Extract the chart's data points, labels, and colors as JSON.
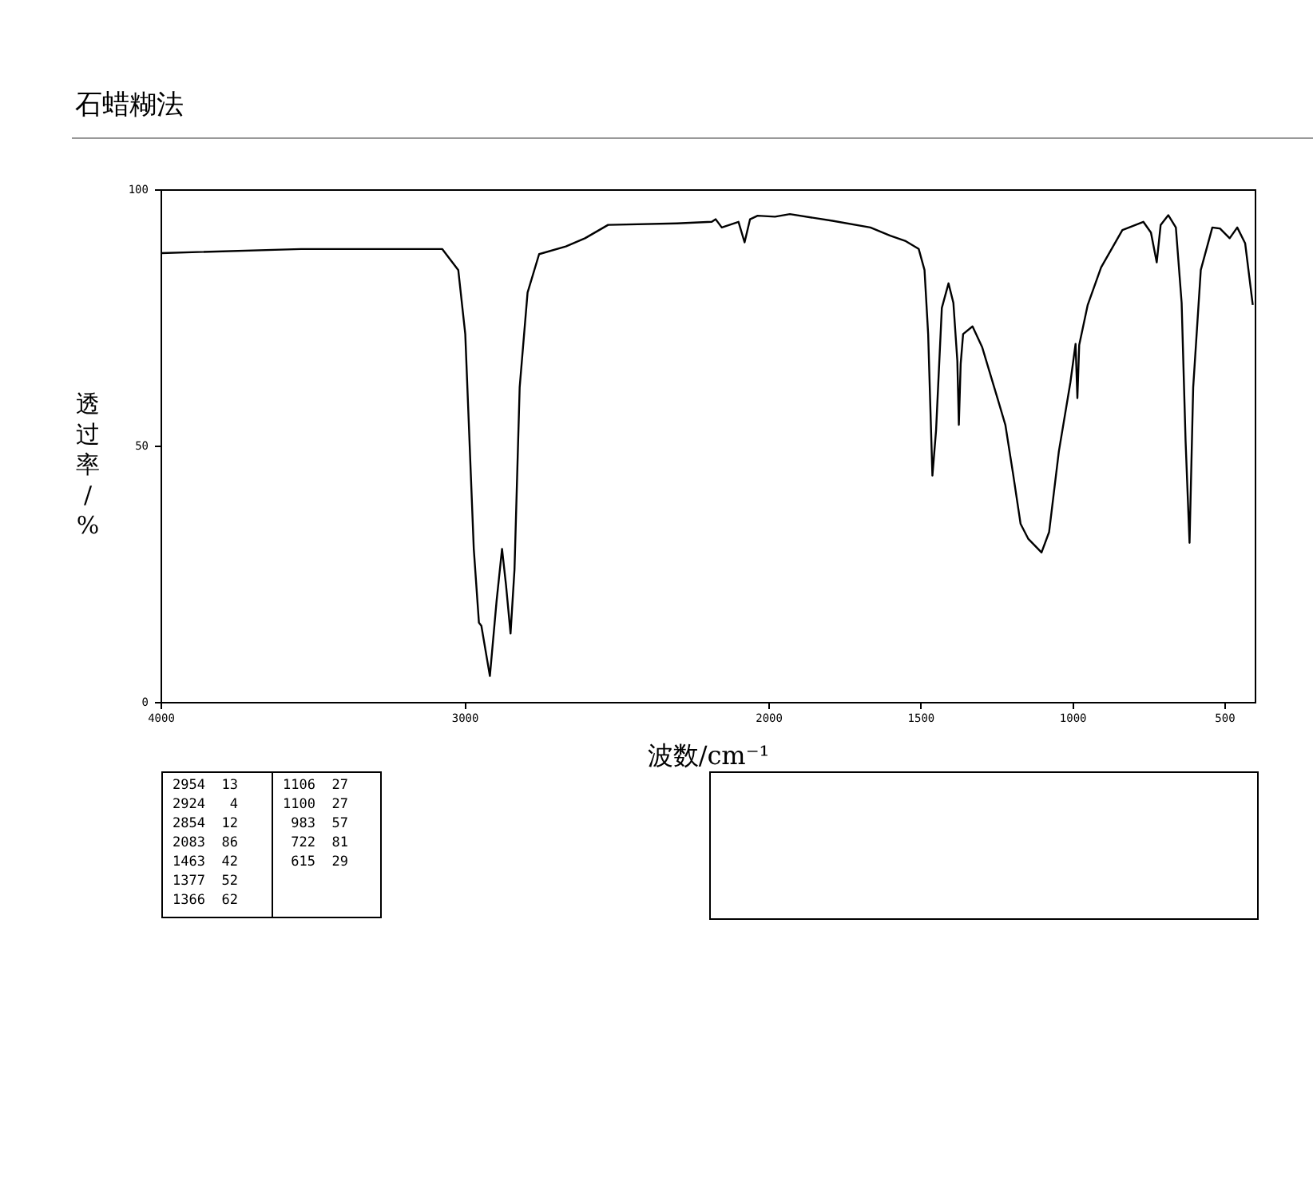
{
  "chart_data": {
    "type": "line",
    "title": "石蜡糊法",
    "xlabel": "波数/cm⁻¹",
    "ylabel": "透过率/%",
    "xlim": [
      4000,
      400
    ],
    "xticks": [
      4000,
      3000,
      2000,
      1500,
      1000,
      500
    ],
    "ylim": [
      0,
      100
    ],
    "yticks": [
      0,
      50,
      100
    ],
    "grid": false,
    "legend": false,
    "marker": "none",
    "line_style": "solid",
    "series": [
      {
        "color": "#000000",
        "x": [
          4000,
          3540,
          3076,
          3023,
          3000,
          2972,
          2955,
          2947,
          2919,
          2897,
          2879,
          2866,
          2851,
          2838,
          2821,
          2795,
          2757,
          2669,
          2606,
          2530,
          2303,
          2189,
          2176,
          2156,
          2101,
          2081,
          2063,
          2038,
          1981,
          1932,
          1792,
          1667,
          1602,
          1553,
          1508,
          1489,
          1477,
          1463,
          1451,
          1432,
          1410,
          1394,
          1381,
          1376,
          1370,
          1362,
          1331,
          1299,
          1249,
          1223,
          1198,
          1173,
          1148,
          1104,
          1079,
          1047,
          1009,
          992,
          986,
          980,
          952,
          908,
          838,
          769,
          744,
          725,
          712,
          687,
          662,
          643,
          630,
          617,
          605,
          580,
          542,
          517,
          485,
          460,
          434,
          409
        ],
        "values": [
          87.7,
          88.5,
          88.5,
          84.4,
          71.9,
          30,
          15.6,
          15,
          5.2,
          19.8,
          30,
          23,
          13.5,
          26,
          61.5,
          80,
          87.5,
          89,
          90.6,
          93.2,
          93.5,
          93.8,
          94.3,
          92.7,
          93.8,
          89.8,
          94.3,
          95,
          94.8,
          95.3,
          94,
          92.7,
          91.1,
          90.1,
          88.5,
          84.4,
          71.9,
          44.3,
          53.1,
          77,
          81.8,
          78,
          66.7,
          54.2,
          66.1,
          71.9,
          73.4,
          69.3,
          59.4,
          54.2,
          44.8,
          34.9,
          32,
          29.3,
          33.3,
          49,
          62.5,
          70,
          59.4,
          69.8,
          77.6,
          84.9,
          92.2,
          93.8,
          91.7,
          85.9,
          93.2,
          95.1,
          92.7,
          78,
          51,
          31.2,
          61.5,
          84.4,
          92.7,
          92.5,
          90.6,
          92.7,
          89.6,
          77.6
        ]
      }
    ],
    "annotations": [
      "2954  13",
      "2924   4",
      "2854  12",
      "2083  86",
      "1463  42",
      "1377  52",
      "1366  62",
      "1106  27",
      "1100  27",
      " 983  57",
      " 722  81",
      " 615  29"
    ]
  }
}
